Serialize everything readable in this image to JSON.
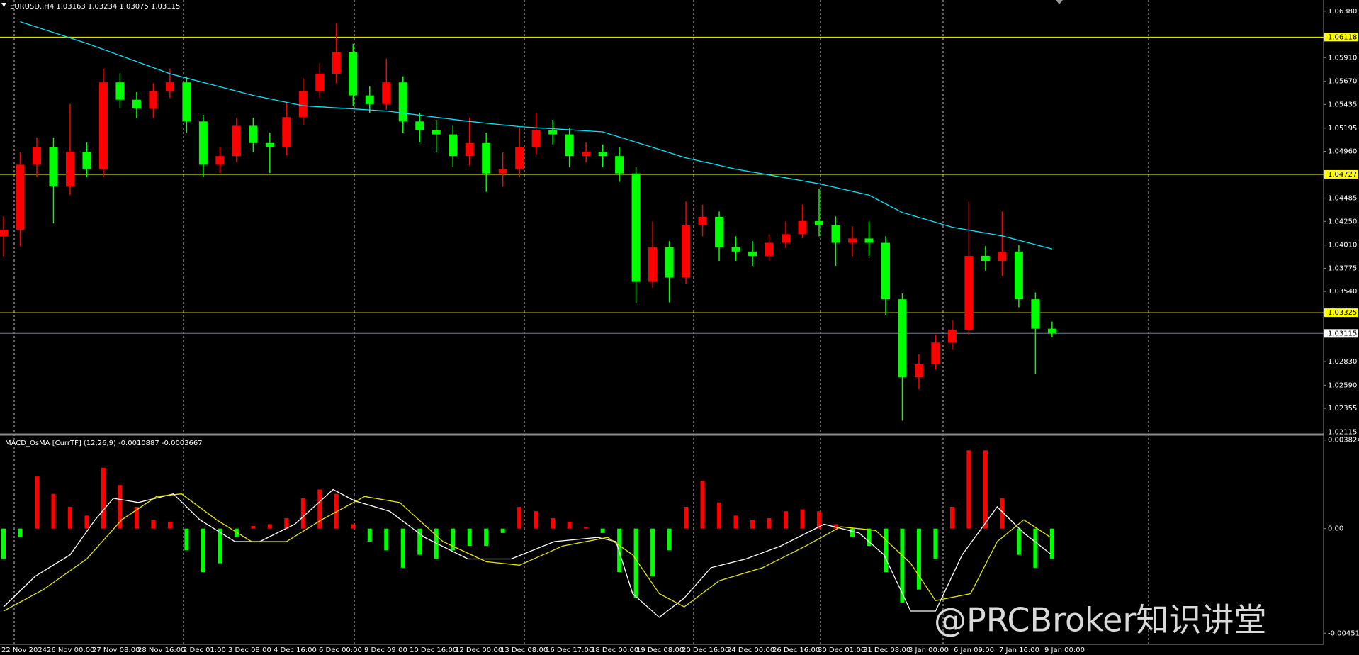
{
  "chart_data": [
    {
      "type": "candlestick",
      "title": "EURUSD.,H4 1.03163 1.03234 1.03075 1.03115",
      "x_labels": [
        "22 Nov 2024",
        "26 Nov 00:00",
        "27 Nov 08:00",
        "28 Nov 16:00",
        "2 Dec 01:00",
        "3 Dec 08:00",
        "4 Dec 16:00",
        "6 Dec 00:00",
        "9 Dec 09:00",
        "10 Dec 16:00",
        "12 Dec 00:00",
        "13 Dec 08:00",
        "16 Dec 17:00",
        "18 Dec 00:00",
        "19 Dec 08:00",
        "20 Dec 16:00",
        "24 Dec 00:00",
        "26 Dec 16:00",
        "30 Dec 01:00",
        "31 Dec 08:00",
        "3 Jan 00:00",
        "6 Jan 09:00",
        "7 Jan 16:00",
        "9 Jan 00:00"
      ],
      "open": [
        1.041,
        1.04165,
        1.04824,
        1.05,
        1.04604,
        1.04956,
        1.0478,
        1.05659,
        1.05483,
        1.05395,
        1.05571,
        1.05659,
        1.05263,
        1.04824,
        1.04912,
        1.05219,
        1.05044,
        1.05,
        1.05307,
        1.05571,
        1.05747,
        1.05967,
        1.05527,
        1.05439,
        1.05659,
        1.05263,
        1.05175,
        1.05132,
        1.04912,
        1.05044,
        1.04736,
        1.0478,
        1.05,
        1.05175,
        1.05132,
        1.04912,
        1.04956,
        1.04912,
        1.04736,
        1.03637,
        1.03989,
        1.03681,
        1.04209,
        1.04296,
        1.03989,
        1.03945,
        1.03901,
        1.04033,
        1.04121,
        1.04253,
        1.04209,
        1.04033,
        1.04077,
        1.04033,
        1.03461,
        1.0267,
        1.02802,
        1.03022,
        1.03154,
        1.03901,
        1.0385,
        1.03945,
        1.03461,
        1.03163
      ],
      "high": [
        1.043,
        1.0495,
        1.051,
        1.051,
        1.0544,
        1.0505,
        1.058,
        1.0575,
        1.0556,
        1.0565,
        1.058,
        1.0572,
        1.0533,
        1.05,
        1.053,
        1.053,
        1.0515,
        1.0545,
        1.057,
        1.0585,
        1.0626,
        1.0605,
        1.0562,
        1.059,
        1.0572,
        1.0535,
        1.0528,
        1.0522,
        1.053,
        1.0515,
        1.0495,
        1.052,
        1.0535,
        1.0528,
        1.052,
        1.0505,
        1.0503,
        1.05,
        1.048,
        1.0425,
        1.0405,
        1.0445,
        1.0442,
        1.0435,
        1.041,
        1.0405,
        1.0412,
        1.0425,
        1.0442,
        1.0458,
        1.043,
        1.042,
        1.0425,
        1.041,
        1.0352,
        1.029,
        1.031,
        1.0325,
        1.0445,
        1.04,
        1.0435,
        1.0401,
        1.0353,
        1.03234
      ],
      "low": [
        1.039,
        1.04,
        1.047,
        1.0423,
        1.0452,
        1.047,
        1.047,
        1.054,
        1.053,
        1.053,
        1.055,
        1.0515,
        1.047,
        1.0474,
        1.0485,
        1.0495,
        1.0474,
        1.0492,
        1.0523,
        1.055,
        1.0565,
        1.0542,
        1.0535,
        1.0538,
        1.0515,
        1.0505,
        1.0495,
        1.048,
        1.0482,
        1.0455,
        1.046,
        1.047,
        1.0493,
        1.0503,
        1.048,
        1.0485,
        1.048,
        1.0465,
        1.0342,
        1.0358,
        1.0343,
        1.0362,
        1.041,
        1.0385,
        1.0385,
        1.038,
        1.0385,
        1.0398,
        1.0408,
        1.041,
        1.038,
        1.039,
        1.039,
        1.033,
        1.0223,
        1.0255,
        1.0275,
        1.0295,
        1.031,
        1.0375,
        1.037,
        1.0338,
        1.027,
        1.03075
      ],
      "close": [
        1.04165,
        1.04824,
        1.05,
        1.04604,
        1.04956,
        1.0478,
        1.05659,
        1.05483,
        1.05395,
        1.05571,
        1.05659,
        1.05263,
        1.04824,
        1.04912,
        1.05219,
        1.05044,
        1.05,
        1.05307,
        1.05571,
        1.05747,
        1.05967,
        1.05527,
        1.05439,
        1.05659,
        1.05263,
        1.05175,
        1.05132,
        1.04912,
        1.05044,
        1.04736,
        1.0478,
        1.05,
        1.05175,
        1.05132,
        1.04912,
        1.04956,
        1.04912,
        1.04736,
        1.03637,
        1.03989,
        1.03681,
        1.04209,
        1.04296,
        1.03989,
        1.03945,
        1.03901,
        1.04033,
        1.04121,
        1.04253,
        1.04209,
        1.04033,
        1.04077,
        1.04033,
        1.03461,
        1.0267,
        1.02802,
        1.03022,
        1.03154,
        1.03901,
        1.0385,
        1.03945,
        1.03461,
        1.03163,
        1.03115
      ],
      "up_color": "#ff0000",
      "down_color": "#00ff00",
      "overlay": {
        "color": "#00e5ff",
        "x": [
          1,
          5,
          10,
          15,
          18,
          23,
          28,
          31,
          36,
          39,
          41,
          44,
          47,
          49,
          52,
          54,
          57,
          60,
          63
        ],
        "values": [
          1.06274,
          1.06055,
          1.05747,
          1.05527,
          1.05422,
          1.05369,
          1.05263,
          1.05211,
          1.05158,
          1.05,
          1.04894,
          1.0478,
          1.04692,
          1.04631,
          1.04516,
          1.0434,
          1.04191,
          1.04103,
          1.03971
        ]
      },
      "levels": [
        {
          "value": 1.06118,
          "label": "1.06118"
        },
        {
          "value": 1.04727,
          "label": "1.04727"
        },
        {
          "value": 1.03325,
          "label": "1.03325"
        }
      ],
      "level_color": "#ffff00",
      "current": {
        "value": 1.03115,
        "label": "1.03115"
      },
      "ylim": [
        1.02097,
        1.06494
      ],
      "yticks": [
        {
          "value": 1.0638,
          "label": "1.06380"
        },
        {
          "value": 1.0591,
          "label": "1.05910"
        },
        {
          "value": 1.0567,
          "label": "1.05670"
        },
        {
          "value": 1.05435,
          "label": "1.05435"
        },
        {
          "value": 1.05195,
          "label": "1.05195"
        },
        {
          "value": 1.0496,
          "label": "1.04960"
        },
        {
          "value": 1.04485,
          "label": "1.04485"
        },
        {
          "value": 1.0425,
          "label": "1.04250"
        },
        {
          "value": 1.0401,
          "label": "1.04010"
        },
        {
          "value": 1.03775,
          "label": "1.03775"
        },
        {
          "value": 1.0354,
          "label": "1.03540"
        },
        {
          "value": 1.0283,
          "label": "1.02830"
        },
        {
          "value": 1.0259,
          "label": "1.02590"
        },
        {
          "value": 1.02355,
          "label": "1.02355"
        },
        {
          "value": 1.02115,
          "label": "1.02115"
        }
      ]
    },
    {
      "type": "macd",
      "title": "MACD_OsMA [CurrTF] (12,26,9) -0.0010887 -0.0003667",
      "histogram": [
        -0.00131,
        -0.00038,
        0.00225,
        0.0015,
        0.00094,
        0.00056,
        0.00263,
        0.00188,
        0.00094,
        0.00038,
        0.0003,
        -0.00094,
        -0.00188,
        -0.0015,
        -0.00038,
        0.00011,
        0.00019,
        0.00045,
        0.00131,
        0.00169,
        0.0015,
        0.00019,
        -0.00056,
        -0.00094,
        -0.00169,
        -0.00113,
        -0.00131,
        -0.00094,
        -0.00075,
        -0.00075,
        -0.00019,
        0.00094,
        0.00075,
        0.00045,
        0.0003,
        8e-05,
        -0.00019,
        -0.00188,
        -0.003,
        -0.00206,
        -0.00094,
        0.00094,
        0.00206,
        0.00113,
        0.00056,
        0.00038,
        0.00045,
        0.00075,
        0.00083,
        0.00075,
        0.00019,
        -0.00038,
        -0.00075,
        -0.00188,
        -0.00319,
        -0.00263,
        -0.00131,
        0.00094,
        0.00338,
        0.00338,
        0.00131,
        -0.00113,
        -0.00169,
        -0.00131
      ],
      "up_color": "#ff0000",
      "down_color": "#00ff00",
      "macd": {
        "color": "#ffffff",
        "x": [
          0,
          1.9,
          4,
          5.5,
          6.6,
          8.1,
          10.2,
          11.8,
          13.9,
          15.4,
          17.5,
          19.8,
          21.1,
          23.2,
          25.3,
          27.9,
          30.5,
          33.1,
          35.7,
          36.8,
          37.8,
          39.4,
          40.9,
          42.5,
          44.6,
          46.7,
          49.3,
          51.4,
          52.9,
          54.5,
          56,
          57.6,
          59.7,
          61.3,
          62.9
        ],
        "values": [
          -0.00338,
          -0.00206,
          -0.00113,
          0.00038,
          0.00131,
          0.00113,
          0.0015,
          0.00038,
          -0.00056,
          -0.00056,
          0.00019,
          0.00169,
          0.0012,
          0.00075,
          -0.00038,
          -0.00131,
          -0.00131,
          -0.00056,
          -0.00038,
          -0.00056,
          -0.00281,
          -0.00383,
          -0.003,
          -0.00169,
          -0.00131,
          -0.00075,
          0.00019,
          -0.00019,
          -0.00113,
          -0.00356,
          -0.00356,
          -0.00113,
          0.00094,
          -0.00019,
          -0.00109
        ]
      },
      "signal": {
        "color": "#e6e600",
        "x": [
          0,
          2.4,
          5,
          7.1,
          9.2,
          10.7,
          12.8,
          14.9,
          17,
          19.1,
          21.7,
          23.8,
          26.4,
          29,
          31,
          33.6,
          36.3,
          37.8,
          39.4,
          40.9,
          43,
          45.6,
          48.2,
          50.3,
          52.4,
          54.5,
          56,
          58.1,
          59.7,
          61.3,
          62.9
        ],
        "values": [
          -0.00356,
          -0.00263,
          -0.00131,
          0.00038,
          0.00139,
          0.0015,
          0.00038,
          -0.00056,
          -0.00056,
          0.00038,
          0.00139,
          0.00113,
          -0.00056,
          -0.00143,
          -0.00158,
          -0.00075,
          -0.00038,
          -0.00113,
          -0.00281,
          -0.00338,
          -0.00225,
          -0.00169,
          -0.00075,
          8e-05,
          -8e-05,
          -0.0015,
          -0.00311,
          -0.00281,
          -0.00056,
          0.00038,
          -0.00037
        ]
      },
      "ylim": [
        -0.005,
        0.004
      ],
      "yticks": [
        0.0038243,
        {
          "value": 0,
          "label": "0.00"
        },
        -0.004518
      ]
    }
  ],
  "watermark": "@PRCBroker知识讲堂"
}
